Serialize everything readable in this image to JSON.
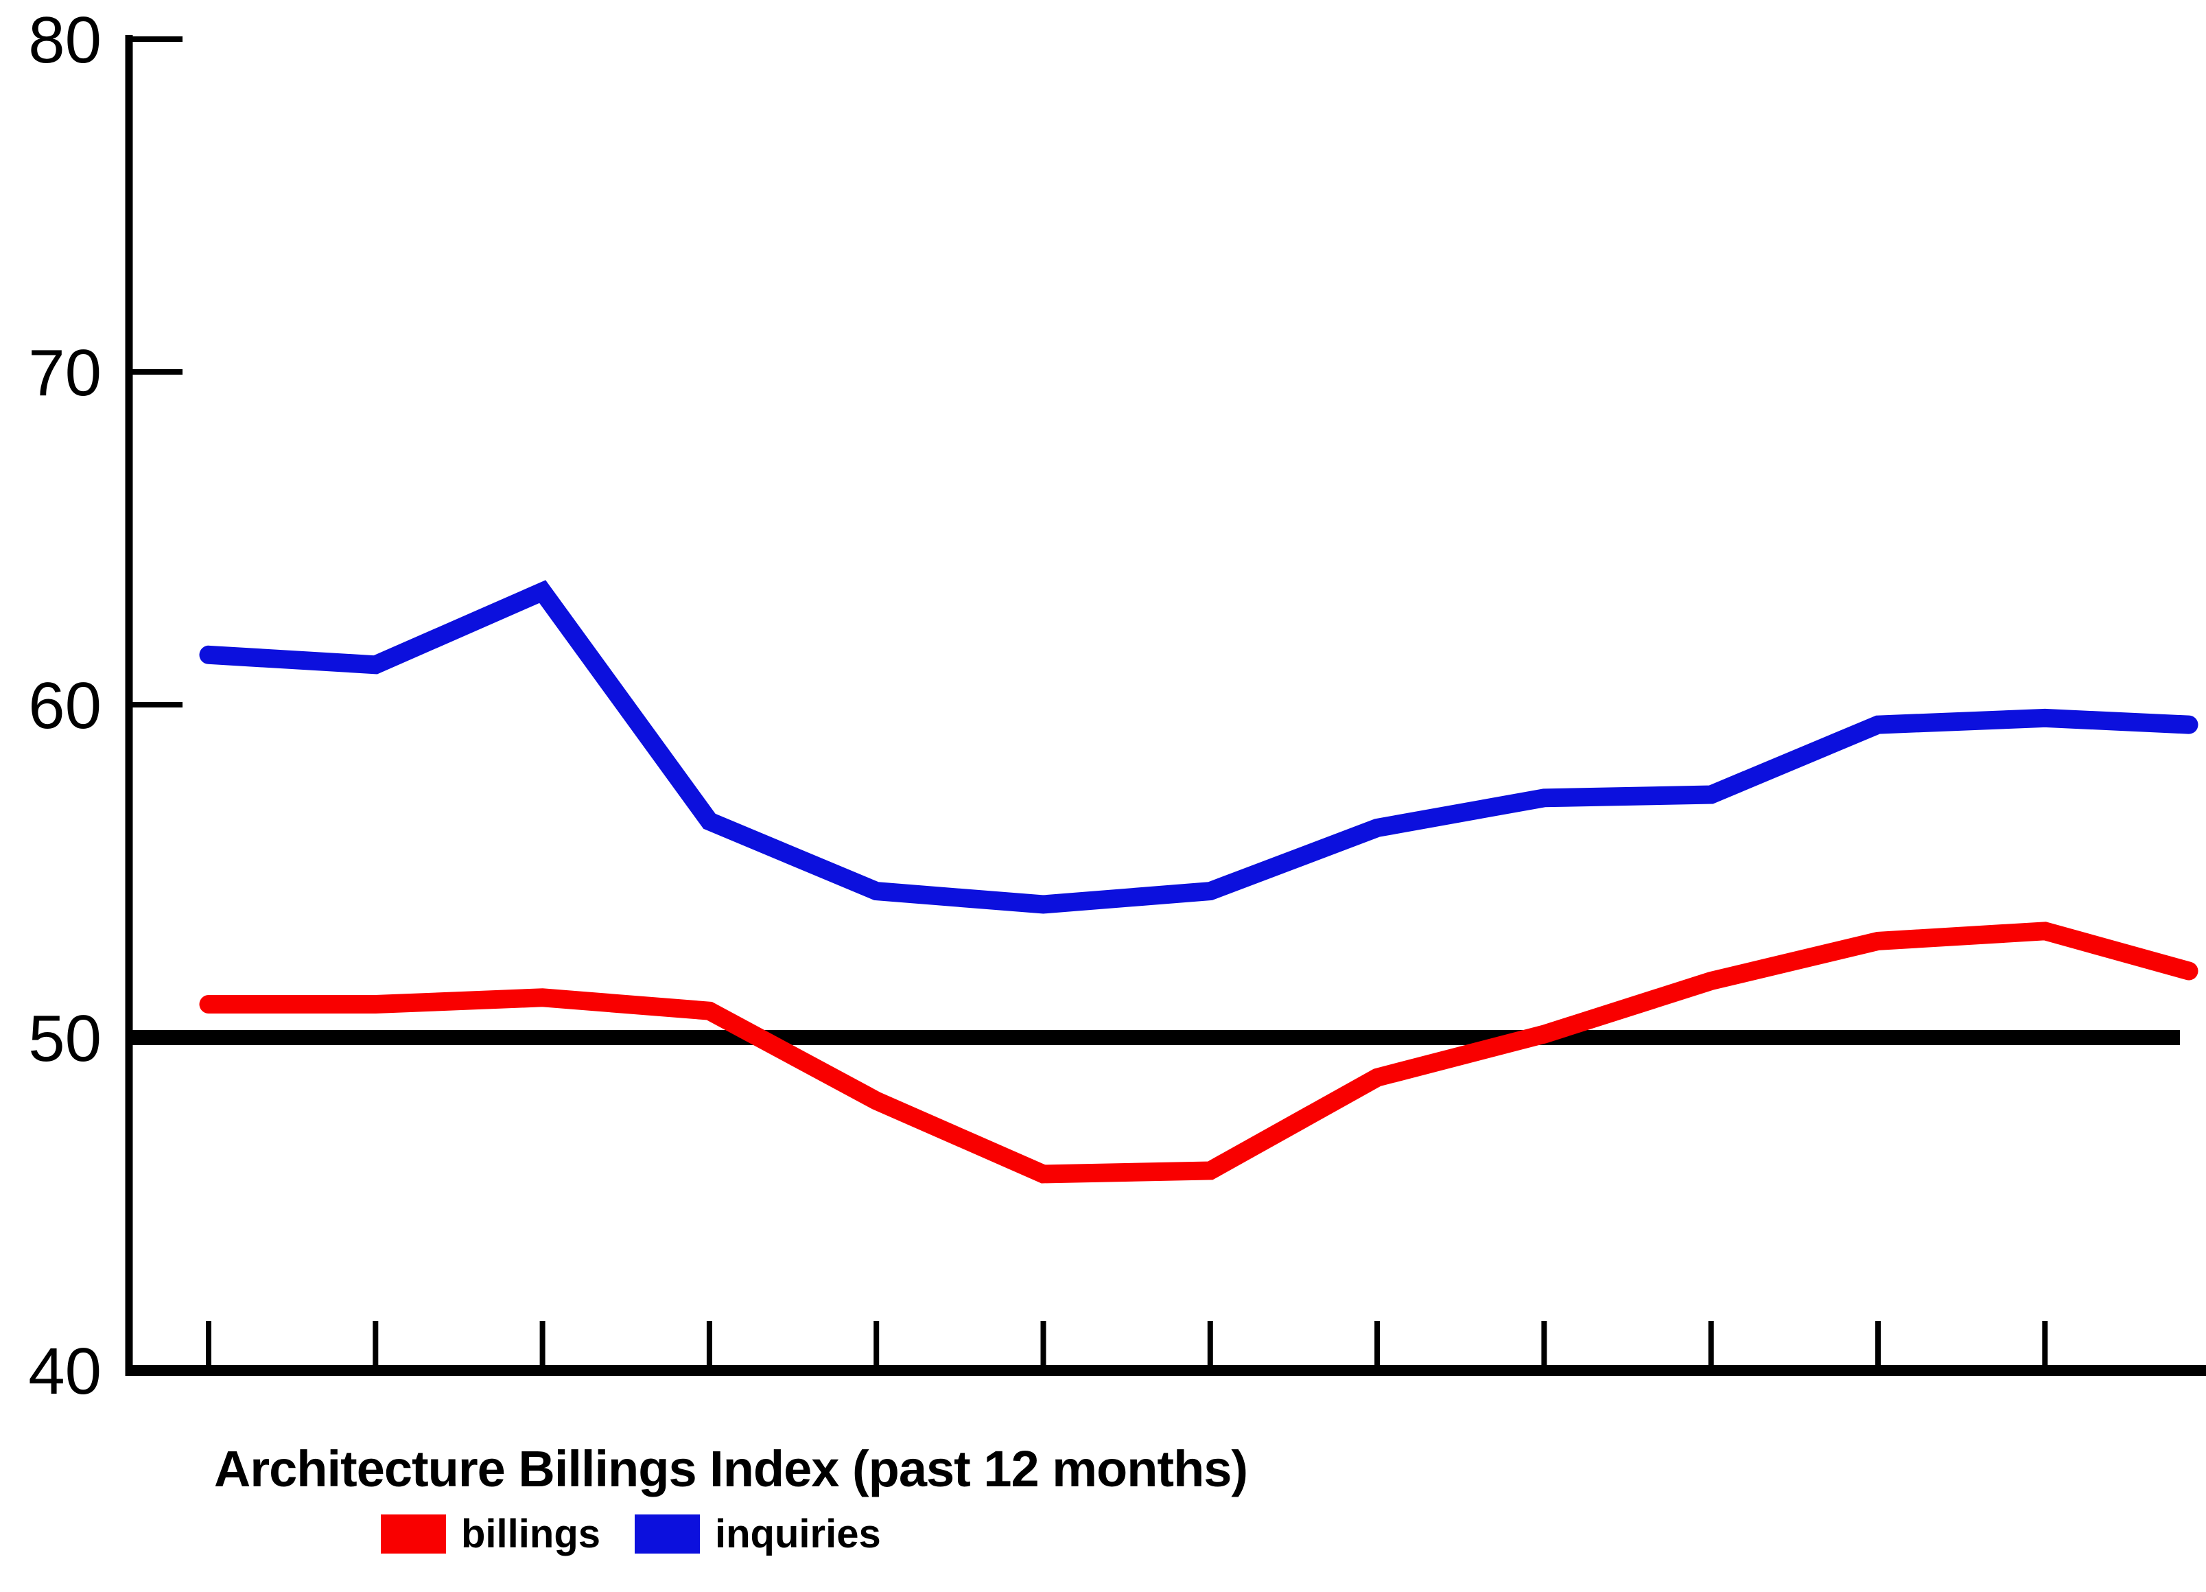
{
  "chart_data": {
    "type": "line",
    "title": "Architecture Billings Index (past 12 months)",
    "xlabel": "",
    "ylabel": "",
    "x": [
      1,
      2,
      3,
      4,
      5,
      6,
      7,
      8,
      9,
      10,
      11,
      12,
      13
    ],
    "series": [
      {
        "name": "billings",
        "color": "#f90000",
        "values": [
          51.0,
          51.0,
          51.2,
          50.8,
          48.1,
          45.9,
          46.0,
          48.8,
          50.1,
          51.7,
          52.9,
          53.2,
          52.0
        ]
      },
      {
        "name": "inquiries",
        "color": "#0c10dd",
        "values": [
          61.5,
          61.2,
          63.4,
          56.5,
          54.4,
          54.0,
          54.4,
          56.3,
          57.2,
          57.3,
          59.4,
          59.6,
          59.4
        ]
      }
    ],
    "benchmark": {
      "value": 50,
      "color": "#000000"
    },
    "y_axis": {
      "min": 40,
      "max": 80,
      "ticks": [
        80,
        70,
        60,
        50,
        40
      ]
    },
    "x_axis": {
      "tick_count": 12,
      "labels_visible": false
    },
    "grid": false,
    "legend_position": "bottom-left",
    "legend": [
      {
        "label": "billings",
        "color": "#f90000"
      },
      {
        "label": "inquiries",
        "color": "#0c10dd"
      }
    ],
    "axis_color": "#000000",
    "background": "#ffffff"
  }
}
